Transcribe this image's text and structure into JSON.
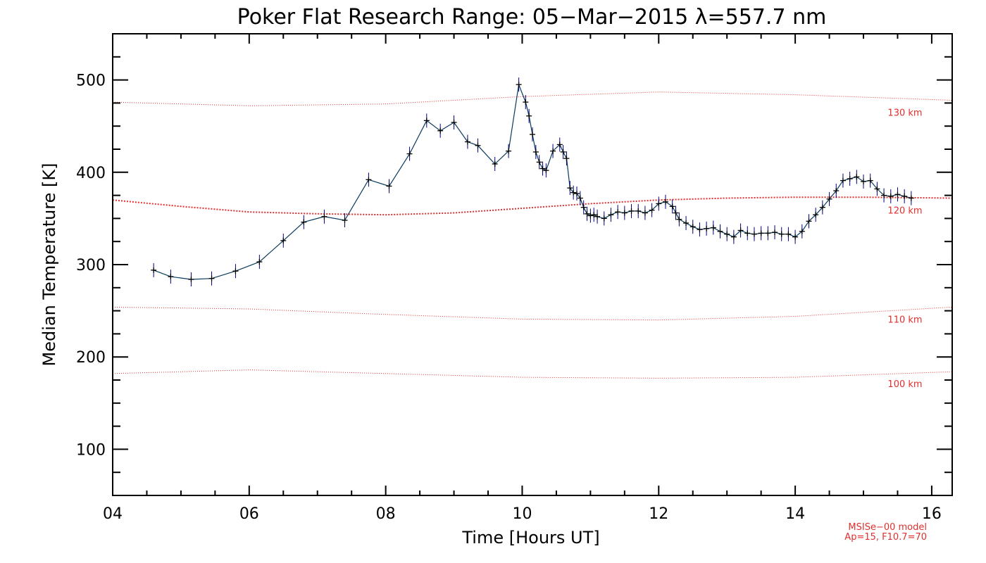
{
  "chart_data": {
    "type": "line",
    "title": "Poker Flat Research Range: 05−Mar−2015 λ=557.7 nm",
    "xlabel": "Time [Hours UT]",
    "ylabel": "Median Temperature [K]",
    "xlim": [
      4.0,
      16.3
    ],
    "ylim": [
      50,
      550
    ],
    "x_ticks": [
      4,
      6,
      8,
      10,
      12,
      14,
      16
    ],
    "x_tick_labels": [
      "04",
      "06",
      "08",
      "10",
      "12",
      "14",
      "16"
    ],
    "y_ticks": [
      100,
      200,
      300,
      400,
      500
    ],
    "y_tick_labels": [
      "100",
      "200",
      "300",
      "400",
      "500"
    ],
    "grid": false,
    "series": [
      {
        "color": "#0a3a5c",
        "marker_color": "#000080",
        "x": [
          4.6,
          4.85,
          5.15,
          5.45,
          5.8,
          6.15,
          6.5,
          6.8,
          7.1,
          7.4,
          7.75,
          8.05,
          8.35,
          8.6,
          8.8,
          9.0,
          9.2,
          9.35,
          9.6,
          9.8,
          9.95,
          10.05,
          10.1,
          10.15,
          10.2,
          10.25,
          10.3,
          10.35,
          10.45,
          10.55,
          10.6,
          10.65,
          10.7,
          10.75,
          10.8,
          10.85,
          10.9,
          10.95,
          11.0,
          11.05,
          11.1,
          11.2,
          11.3,
          11.4,
          11.5,
          11.6,
          11.7,
          11.8,
          11.9,
          12.0,
          12.1,
          12.2,
          12.25,
          12.3,
          12.4,
          12.5,
          12.6,
          12.7,
          12.8,
          12.9,
          13.0,
          13.1,
          13.2,
          13.3,
          13.4,
          13.5,
          13.6,
          13.7,
          13.8,
          13.9,
          14.0,
          14.1,
          14.2,
          14.3,
          14.4,
          14.5,
          14.6,
          14.7,
          14.8,
          14.9,
          15.0,
          15.1,
          15.2,
          15.3,
          15.4,
          15.5,
          15.6,
          15.7
        ],
        "values": [
          294,
          287,
          284,
          285,
          293,
          303,
          326,
          346,
          352,
          348,
          392,
          385,
          420,
          456,
          445,
          454,
          433,
          429,
          409,
          423,
          495,
          476,
          461,
          441,
          422,
          411,
          404,
          402,
          423,
          430,
          422,
          415,
          383,
          378,
          377,
          372,
          362,
          355,
          353,
          354,
          352,
          350,
          354,
          357,
          356,
          358,
          358,
          356,
          359,
          366,
          368,
          363,
          356,
          349,
          345,
          341,
          338,
          339,
          340,
          336,
          333,
          330,
          337,
          334,
          333,
          334,
          334,
          335,
          333,
          333,
          330,
          336,
          347,
          354,
          362,
          371,
          380,
          391,
          393,
          395,
          390,
          391,
          382,
          375,
          374,
          376,
          374,
          372
        ],
        "markers": "plus",
        "error_bars": true
      },
      {
        "name": "130 km",
        "style": "dotted",
        "color": "#e0302e",
        "x": [
          4.0,
          6.0,
          8.0,
          10.0,
          12.0,
          14.0,
          16.3
        ],
        "values": [
          476,
          472,
          474,
          482,
          487,
          484,
          478
        ]
      },
      {
        "name": "120 km",
        "style": "dotted",
        "color": "#e0302e",
        "x": [
          4.0,
          5.0,
          6.0,
          7.0,
          8.0,
          9.0,
          10.0,
          11.0,
          12.0,
          13.0,
          14.0,
          15.0,
          16.3
        ],
        "values": [
          370,
          363,
          357,
          355,
          354,
          356,
          361,
          366,
          370,
          372,
          373,
          373,
          372
        ]
      },
      {
        "name": "110 km",
        "style": "dotted",
        "color": "#e0302e",
        "x": [
          4.0,
          6.0,
          8.0,
          10.0,
          12.0,
          14.0,
          16.3
        ],
        "values": [
          254,
          252,
          246,
          241,
          240,
          244,
          254
        ]
      },
      {
        "name": "100 km",
        "style": "dotted",
        "color": "#e0302e",
        "x": [
          4.0,
          6.0,
          8.0,
          10.0,
          12.0,
          14.0,
          16.3
        ],
        "values": [
          182,
          186,
          182,
          178,
          177,
          178,
          184
        ]
      }
    ],
    "annotations": [
      "MSISe−00 model",
      "Ap=15, F10.7=70"
    ]
  }
}
